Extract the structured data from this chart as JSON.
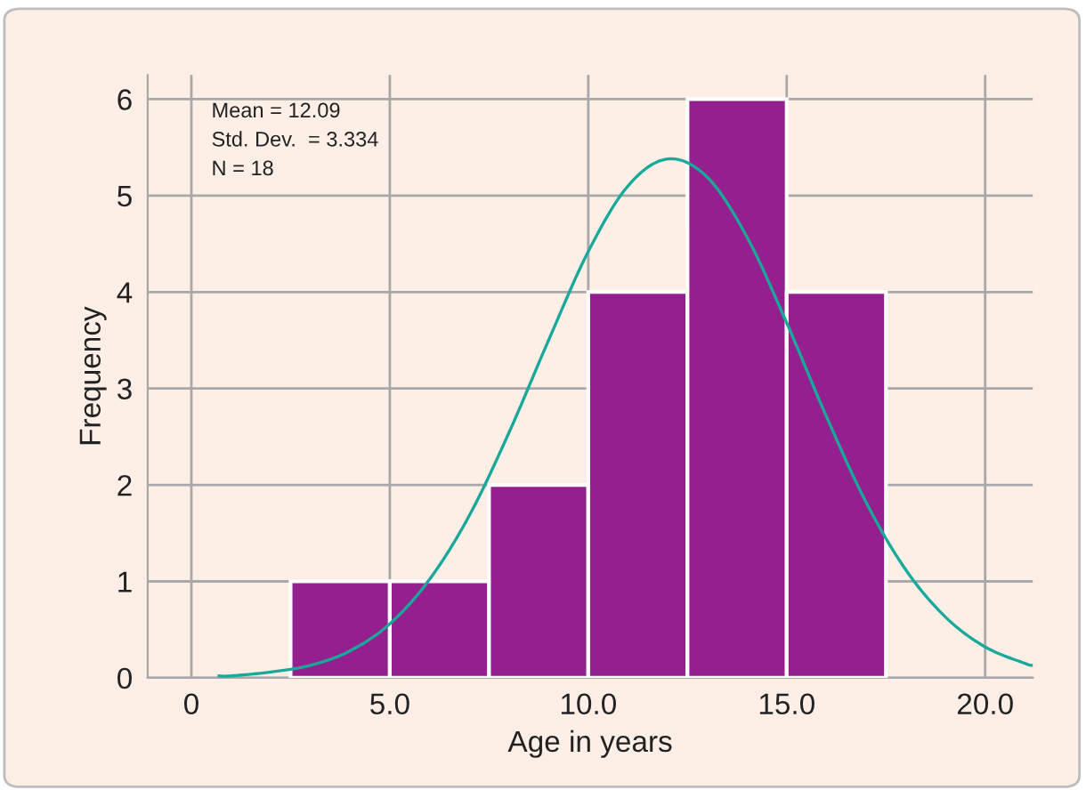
{
  "chart_data": {
    "type": "histogram",
    "xlabel": "Age in years",
    "ylabel": "Frequency",
    "bins": [
      2.5,
      5,
      7.5,
      10,
      12.5,
      15,
      17.5
    ],
    "values": [
      1,
      1,
      2,
      4,
      6,
      4
    ],
    "color": "#93208e",
    "series": [
      {
        "type": "line",
        "color": "#1aa89a",
        "x": [
          0.7,
          1,
          2,
          3,
          4,
          5,
          6,
          7,
          8,
          9,
          10,
          11,
          12,
          13,
          14,
          15,
          16,
          17,
          18,
          19,
          20,
          21,
          21.2
        ],
        "values": [
          0.02,
          0.02,
          0.06,
          0.13,
          0.28,
          0.56,
          1.02,
          1.68,
          2.54,
          3.5,
          4.42,
          5.1,
          5.38,
          5.19,
          4.57,
          3.68,
          2.71,
          1.82,
          1.12,
          0.63,
          0.32,
          0.15,
          0.13
        ]
      }
    ],
    "annotations": [
      "Mean = 12.09",
      "Std. Dev.  = 3.334",
      "N = 18"
    ],
    "xlim": [
      -1.1,
      21.2
    ],
    "ylim": [
      0,
      6.25
    ],
    "xticks": [
      0,
      {
        "value": 5,
        "label": "5.0"
      },
      {
        "value": 10,
        "label": "10.0"
      },
      {
        "value": 15,
        "label": "15.0"
      },
      {
        "value": 20,
        "label": "20.0"
      }
    ],
    "yticks": [
      0,
      1,
      2,
      3,
      4,
      5,
      6
    ],
    "grid": true
  }
}
